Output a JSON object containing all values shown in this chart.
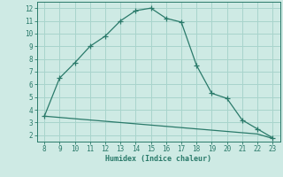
{
  "line1_x": [
    8,
    9,
    10,
    11,
    12,
    13,
    14,
    15,
    16,
    17,
    18,
    19,
    20,
    21,
    22,
    23
  ],
  "line1_y": [
    3.5,
    6.5,
    7.7,
    9.0,
    9.8,
    11.0,
    11.8,
    12.0,
    11.2,
    10.9,
    7.5,
    5.3,
    4.9,
    3.2,
    2.5,
    1.8
  ],
  "line2_x": [
    8,
    9,
    10,
    11,
    12,
    13,
    14,
    15,
    16,
    17,
    18,
    19,
    20,
    21,
    22,
    23
  ],
  "line2_y": [
    3.5,
    3.4,
    3.3,
    3.2,
    3.1,
    3.0,
    2.9,
    2.8,
    2.7,
    2.6,
    2.5,
    2.4,
    2.3,
    2.2,
    2.1,
    1.75
  ],
  "color": "#2a7a6a",
  "xlabel": "Humidex (Indice chaleur)",
  "xlim": [
    7.5,
    23.5
  ],
  "ylim": [
    1.5,
    12.5
  ],
  "xticks": [
    8,
    9,
    10,
    11,
    12,
    13,
    14,
    15,
    16,
    17,
    18,
    19,
    20,
    21,
    22,
    23
  ],
  "yticks": [
    2,
    3,
    4,
    5,
    6,
    7,
    8,
    9,
    10,
    11,
    12
  ],
  "bg_color": "#ceeae4",
  "grid_color": "#a8d4cc"
}
